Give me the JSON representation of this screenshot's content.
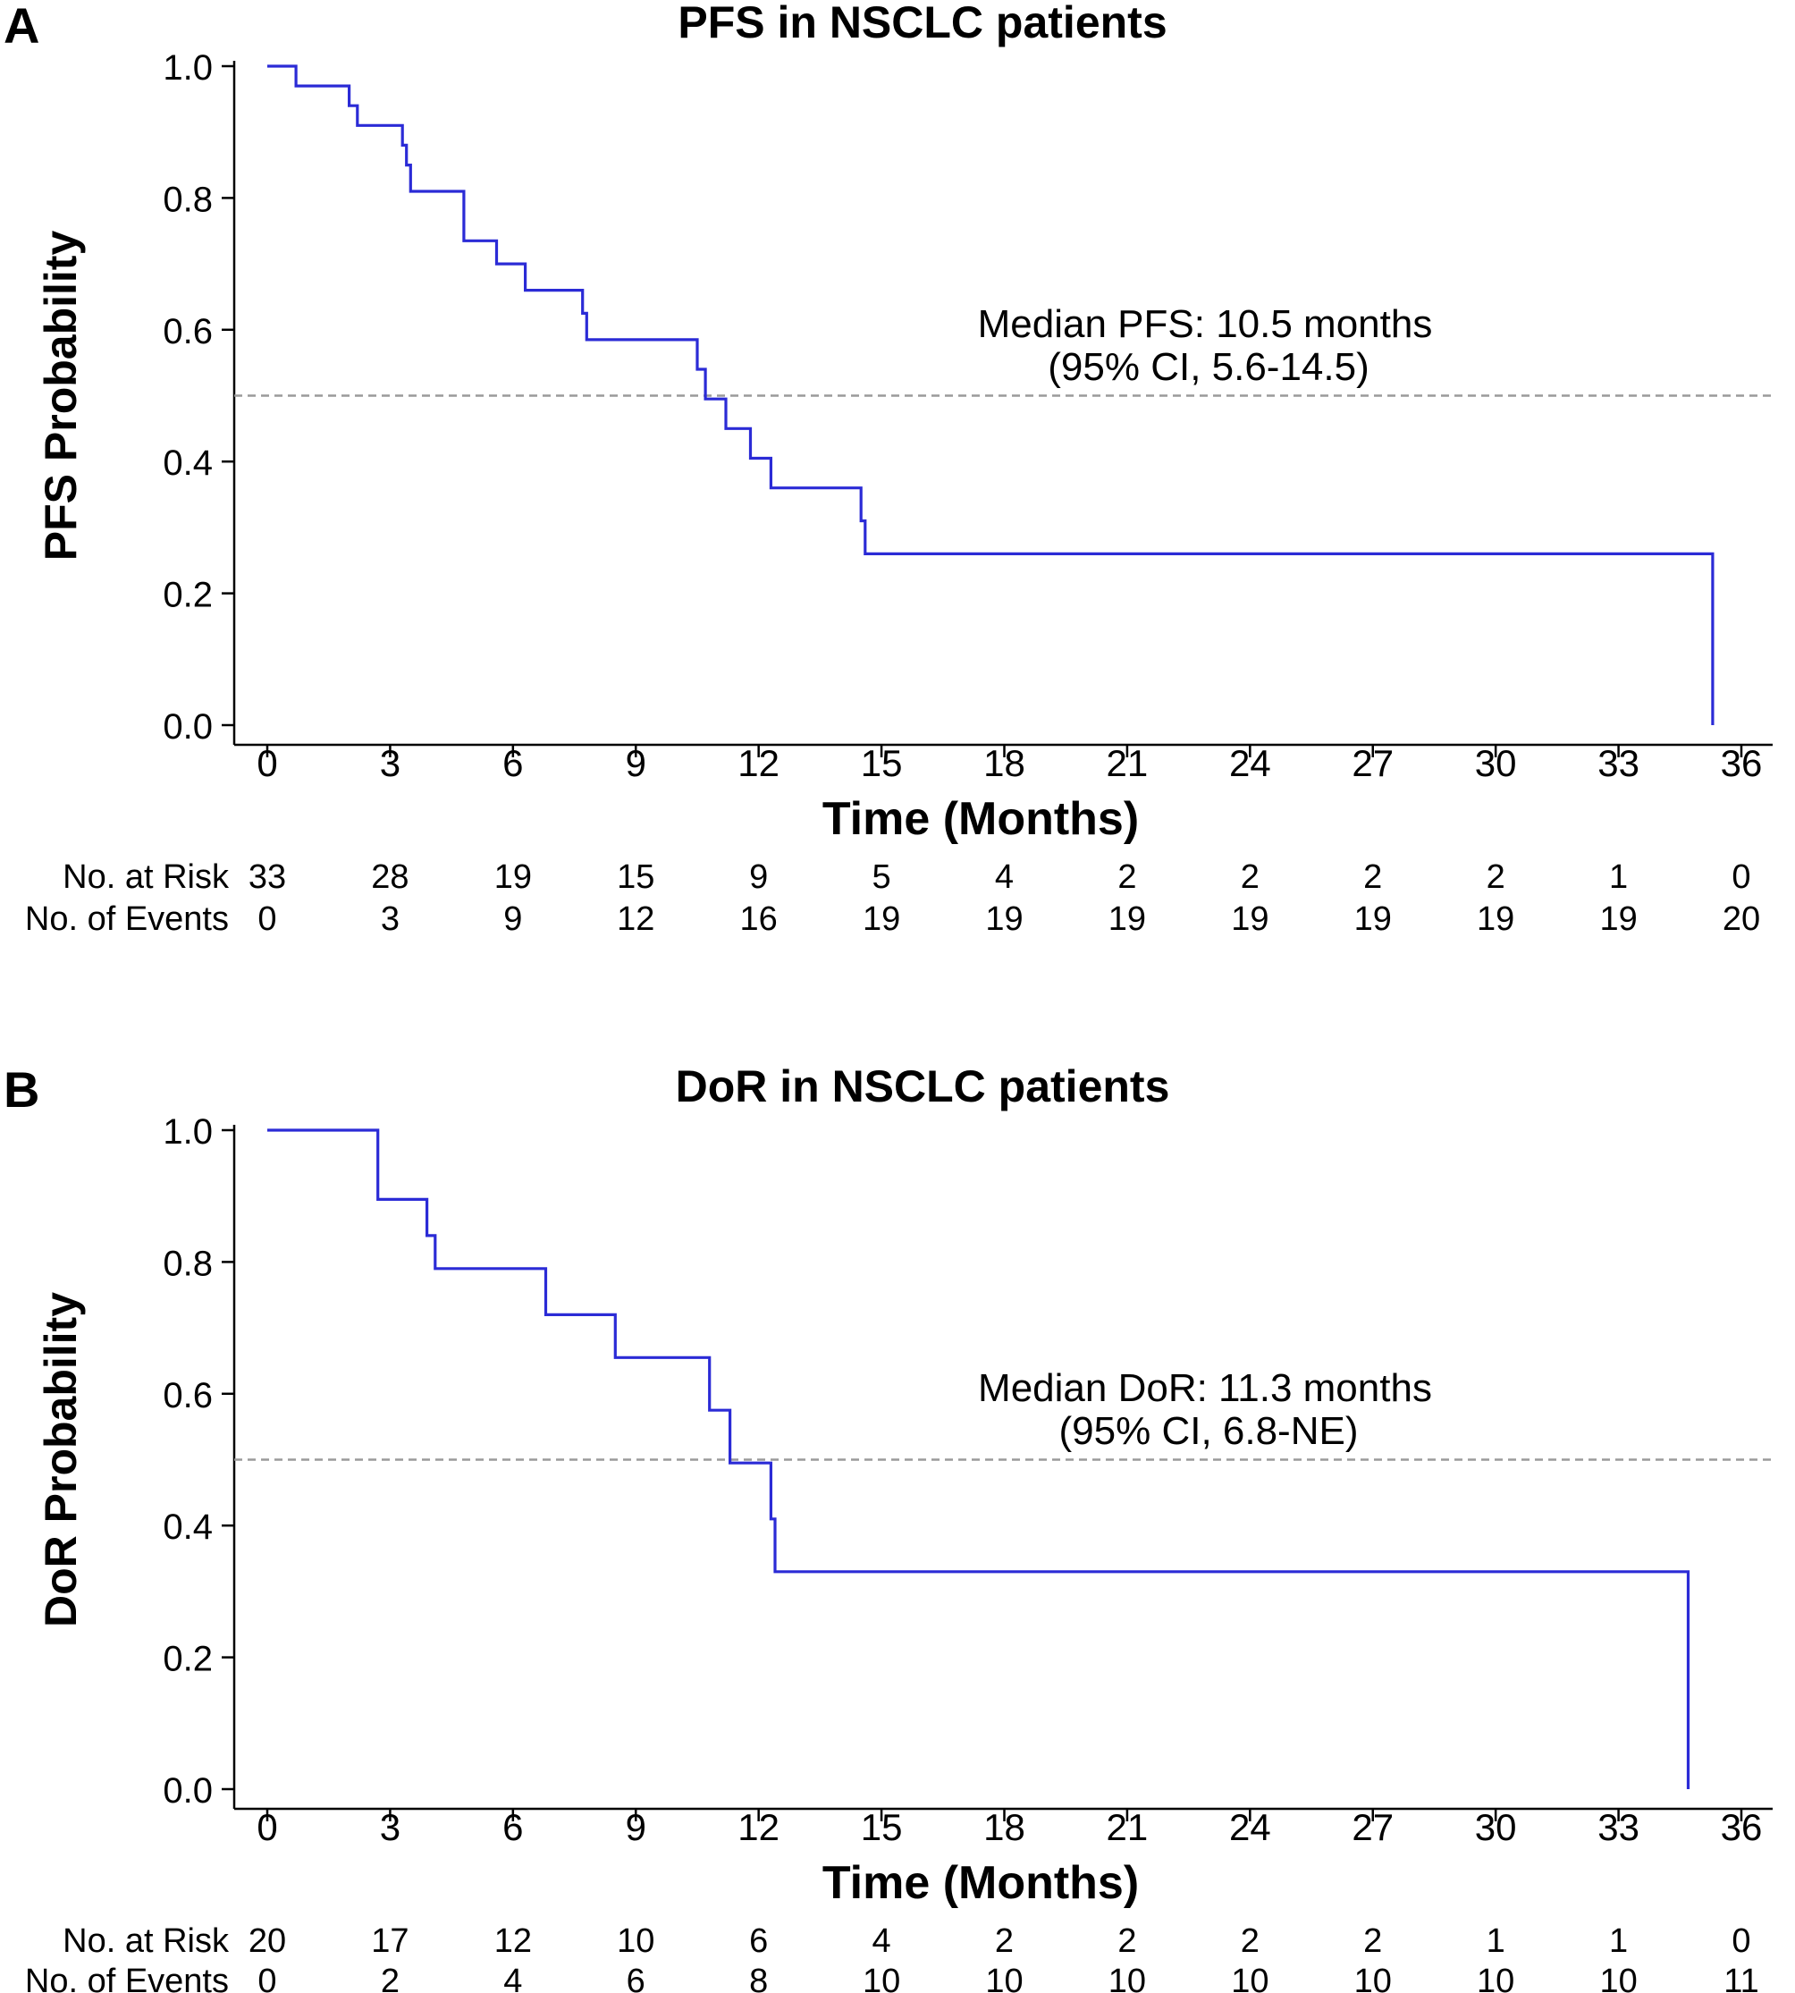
{
  "colors": {
    "curve": "#2b2bd6",
    "median_line": "#9a9a9a",
    "axis": "#000000",
    "text": "#000000"
  },
  "chart_data": [
    {
      "panel_label": "A",
      "type": "line",
      "subtype": "kaplan-meier-step",
      "title": "PFS in NSCLC patients",
      "xlabel": "Time (Months)",
      "ylabel": "PFS Probability",
      "xlim": [
        0,
        36
      ],
      "ylim": [
        0,
        1
      ],
      "xticks": [
        "0",
        "3",
        "6",
        "9",
        "12",
        "15",
        "18",
        "21",
        "24",
        "27",
        "30",
        "33",
        "36"
      ],
      "yticks": [
        "0.0",
        "0.2",
        "0.4",
        "0.6",
        "0.8",
        "1.0"
      ],
      "grid": false,
      "median_reference_y": 0.5,
      "annotation": [
        "Median PFS: 10.5 months",
        "(95% CI, 5.6-14.5)"
      ],
      "risk_table": {
        "labels": [
          "No. at Risk",
          "No. of Events"
        ],
        "at_risk": [
          "33",
          "28",
          "19",
          "15",
          "9",
          "5",
          "4",
          "2",
          "2",
          "2",
          "2",
          "1",
          "0"
        ],
        "events": [
          "0",
          "3",
          "9",
          "12",
          "16",
          "19",
          "19",
          "19",
          "19",
          "19",
          "19",
          "19",
          "20"
        ]
      },
      "series": [
        {
          "x": [
            0,
            0.7,
            0.7,
            2.0,
            2.0,
            2.2,
            2.2,
            3.3,
            3.3,
            3.4,
            3.4,
            3.5,
            3.5,
            4.8,
            4.8,
            5.6,
            5.6,
            6.3,
            6.3,
            7.7,
            7.7,
            7.8,
            7.8,
            10.5,
            10.5,
            10.7,
            10.7,
            11.2,
            11.2,
            11.8,
            11.8,
            12.3,
            12.3,
            14.5,
            14.5,
            14.6,
            14.6,
            35.3,
            35.3
          ],
          "y": [
            1.0,
            1.0,
            0.97,
            0.97,
            0.94,
            0.94,
            0.91,
            0.91,
            0.88,
            0.88,
            0.85,
            0.85,
            0.81,
            0.81,
            0.735,
            0.735,
            0.7,
            0.7,
            0.66,
            0.66,
            0.625,
            0.625,
            0.585,
            0.585,
            0.54,
            0.54,
            0.495,
            0.495,
            0.45,
            0.45,
            0.405,
            0.405,
            0.36,
            0.36,
            0.31,
            0.31,
            0.26,
            0.26,
            0.0
          ]
        }
      ]
    },
    {
      "panel_label": "B",
      "type": "line",
      "subtype": "kaplan-meier-step",
      "title": "DoR in NSCLC patients",
      "xlabel": "Time (Months)",
      "ylabel": "DoR Probability",
      "xlim": [
        0,
        36
      ],
      "ylim": [
        0,
        1
      ],
      "xticks": [
        "0",
        "3",
        "6",
        "9",
        "12",
        "15",
        "18",
        "21",
        "24",
        "27",
        "30",
        "33",
        "36"
      ],
      "yticks": [
        "0.0",
        "0.2",
        "0.4",
        "0.6",
        "0.8",
        "1.0"
      ],
      "grid": false,
      "median_reference_y": 0.5,
      "annotation": [
        "Median DoR: 11.3 months",
        "(95% CI, 6.8-NE)"
      ],
      "risk_table": {
        "labels": [
          "No. at Risk",
          "No. of Events"
        ],
        "at_risk": [
          "20",
          "17",
          "12",
          "10",
          "6",
          "4",
          "2",
          "2",
          "2",
          "2",
          "1",
          "1",
          "0"
        ],
        "events": [
          "0",
          "2",
          "4",
          "6",
          "8",
          "10",
          "10",
          "10",
          "10",
          "10",
          "10",
          "10",
          "11"
        ]
      },
      "series": [
        {
          "x": [
            0,
            2.7,
            2.7,
            3.9,
            3.9,
            4.1,
            4.1,
            6.8,
            6.8,
            8.5,
            8.5,
            10.8,
            10.8,
            11.3,
            11.3,
            12.3,
            12.3,
            12.4,
            12.4,
            34.7,
            34.7
          ],
          "y": [
            1.0,
            1.0,
            0.895,
            0.895,
            0.84,
            0.84,
            0.79,
            0.79,
            0.72,
            0.72,
            0.655,
            0.655,
            0.575,
            0.575,
            0.495,
            0.495,
            0.41,
            0.41,
            0.33,
            0.33,
            0.0
          ]
        }
      ]
    }
  ]
}
